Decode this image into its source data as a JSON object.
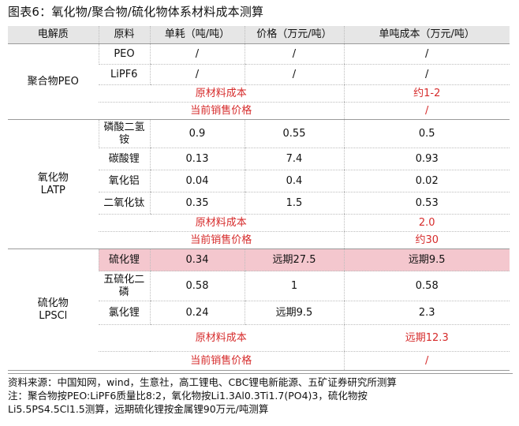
{
  "title": "图表6：氧化物/聚合物/硫化物体系材料成本测算",
  "headers": [
    "电解质",
    "原料",
    "单耗（吨/吨）",
    "价格（万元/吨）",
    "单吨成本（万元/吨）"
  ],
  "peo": {
    "name": "聚合物PEO",
    "rows": [
      {
        "material": "PEO",
        "usage": "/",
        "price": "/",
        "cost": "/"
      },
      {
        "material": "LiPF6",
        "usage": "/",
        "price": "/",
        "cost": "/"
      }
    ],
    "raw_label": "原材料成本",
    "raw_value": "约1-2",
    "sale_label": "当前销售价格",
    "sale_value": "/"
  },
  "latp": {
    "name_line1": "氧化物",
    "name_line2": "LATP",
    "rows": [
      {
        "material": "磷酸二氢铵",
        "usage": "0.9",
        "price": "0.55",
        "cost": "0.5"
      },
      {
        "material": "碳酸锂",
        "usage": "0.13",
        "price": "7.4",
        "cost": "0.93"
      },
      {
        "material": "氧化铝",
        "usage": "0.04",
        "price": "0.4",
        "cost": "0.02"
      },
      {
        "material": "二氧化钛",
        "usage": "0.35",
        "price": "1.5",
        "cost": "0.53"
      }
    ],
    "raw_label": "原材料成本",
    "raw_value": "2.0",
    "sale_label": "当前销售价格",
    "sale_value": "约30"
  },
  "lpscl": {
    "name_line1": "硫化物",
    "name_line2": "LPSCl",
    "rows": [
      {
        "material": "硫化锂",
        "usage": "0.34",
        "price": "远期27.5",
        "cost": "远期9.5"
      },
      {
        "material": "五硫化二磷",
        "usage": "0.58",
        "price": "1",
        "cost": "0.58"
      },
      {
        "material": "氯化锂",
        "usage": "0.24",
        "price": "远期9.5",
        "cost": "2.3"
      }
    ],
    "raw_label": "原材料成本",
    "raw_value": "远期12.3",
    "sale_label": "当前销售价格",
    "sale_value": "/"
  },
  "footer": {
    "source": "资料来源：中国知网，wind，生意社，高工锂电、CBC锂电新能源、五矿证券研究所测算",
    "note_line1": "注：聚合物按PEO:LiPF6质量比8:2，氧化物按Li1.3Al0.3Ti1.7(PO4)3，硫化物按",
    "note_line2": "Li5.5PS4.5Cl1.5测算，远期硫化锂按金属锂90万元/吨测算"
  },
  "colors": {
    "accent_red": "#d62b2b",
    "highlight_pink": "#f4c7ce",
    "header_gray": "#e6e6e6"
  }
}
